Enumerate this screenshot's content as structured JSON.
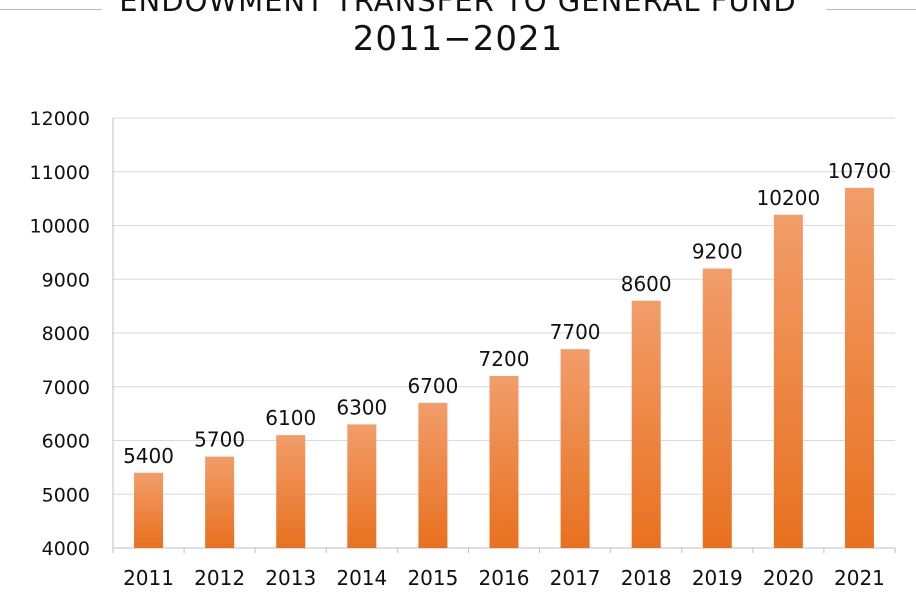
{
  "chart_data": {
    "type": "bar",
    "title_lines": [
      "ENDOWMENT TRANSFER TO GENERAL FUND",
      "2011−2021"
    ],
    "xlabel": "",
    "ylabel": "",
    "categories": [
      "2011",
      "2012",
      "2013",
      "2014",
      "2015",
      "2016",
      "2017",
      "2018",
      "2019",
      "2020",
      "2021"
    ],
    "values": [
      5400,
      5700,
      6100,
      6300,
      6700,
      7200,
      7700,
      8600,
      9200,
      10200,
      10700
    ],
    "data_labels": [
      "5400",
      "5700",
      "6100",
      "6300",
      "6700",
      "7200",
      "7700",
      "8600",
      "9200",
      "10200",
      "10700"
    ],
    "ylim": [
      4000,
      12000
    ],
    "y_ticks": [
      4000,
      5000,
      6000,
      7000,
      8000,
      9000,
      10000,
      11000,
      12000
    ],
    "y_tick_labels": [
      "4000",
      "5000",
      "6000",
      "7000",
      "8000",
      "9000",
      "10000",
      "11000",
      "12000"
    ],
    "grid": true,
    "legend": "none",
    "colors": {
      "bar_top": "#f29d6a",
      "bar_bottom": "#e8711f",
      "grid": "#d9d9d9",
      "axis": "#bfbfbf"
    }
  }
}
